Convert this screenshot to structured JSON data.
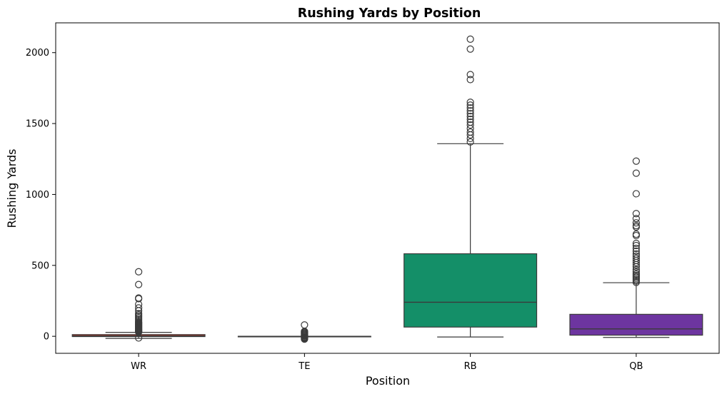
{
  "chart_data": {
    "type": "box",
    "title": "Rushing Yards by Position",
    "xlabel": "Position",
    "ylabel": "Rushing Yards",
    "categories": [
      "WR",
      "TE",
      "RB",
      "QB"
    ],
    "ylim": [
      -120,
      2210
    ],
    "yticks": [
      0,
      500,
      1000,
      1500,
      2000
    ],
    "grid": false,
    "legend": "none",
    "boxes": [
      {
        "name": "WR",
        "color": "#c0392b",
        "whisker_low": -15,
        "q1": -2,
        "median": 2,
        "q3": 12,
        "whisker_high": 28,
        "outliers": [
          -12,
          30,
          33,
          36,
          40,
          44,
          48,
          52,
          56,
          60,
          65,
          70,
          75,
          80,
          85,
          90,
          95,
          100,
          110,
          120,
          130,
          140,
          150,
          160,
          180,
          200,
          225,
          265,
          270,
          365,
          455
        ]
      },
      {
        "name": "TE",
        "color": "#7f8c8d",
        "whisker_low": 0,
        "q1": 0,
        "median": 0,
        "q3": 0,
        "whisker_high": 0,
        "outliers": [
          -20,
          -15,
          -10,
          -6,
          -3,
          3,
          6,
          10,
          15,
          20,
          25,
          30,
          35,
          80
        ]
      },
      {
        "name": "RB",
        "color": "#148f68",
        "whisker_low": -5,
        "q1": 65,
        "median": 240,
        "q3": 582,
        "whisker_high": 1358,
        "outliers": [
          1370,
          1395,
          1420,
          1440,
          1465,
          1490,
          1510,
          1530,
          1550,
          1570,
          1590,
          1610,
          1630,
          1650,
          1810,
          1845,
          2025,
          2095
        ]
      },
      {
        "name": "QB",
        "color": "#6d35a0",
        "whisker_low": -8,
        "q1": 8,
        "median": 52,
        "q3": 155,
        "whisker_high": 378,
        "outliers": [
          380,
          390,
          400,
          410,
          420,
          430,
          440,
          455,
          470,
          490,
          505,
          520,
          535,
          550,
          565,
          580,
          600,
          620,
          640,
          655,
          710,
          720,
          770,
          780,
          800,
          830,
          865,
          1005,
          1150,
          1235
        ]
      }
    ]
  }
}
